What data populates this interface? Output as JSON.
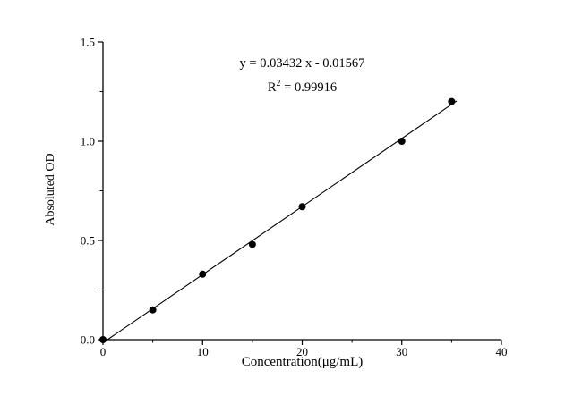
{
  "chart_data": {
    "type": "scatter",
    "title": "",
    "xlabel": "Concentration(μg/mL)",
    "ylabel": "Absoluted OD",
    "xlim": [
      0,
      40
    ],
    "ylim": [
      0,
      1.5
    ],
    "x_ticks": [
      0,
      10,
      20,
      30,
      40
    ],
    "x_tick_labels": [
      "0",
      "10",
      "20",
      "30",
      "40"
    ],
    "y_ticks": [
      0,
      0.5,
      1.0,
      1.5
    ],
    "y_tick_labels": [
      "0.0",
      "0.5",
      "1.0",
      "1.5"
    ],
    "x_minor_step": 5,
    "y_minor_step": 0.25,
    "grid": false,
    "legend": "none",
    "points": {
      "x": [
        0,
        5,
        10,
        15,
        20,
        30,
        35
      ],
      "y": [
        0.0,
        0.15,
        0.33,
        0.48,
        0.67,
        1.0,
        1.2
      ]
    },
    "fit": {
      "slope": 0.03432,
      "intercept": -0.01567,
      "x_start": 0,
      "x_end": 35.5
    },
    "annotation": {
      "equation": "y = 0.03432 x - 0.01567",
      "r2_prefix": "R",
      "r2_sup": "2",
      "r2_suffix": " = 0.99916"
    },
    "colors": {
      "line": "#000000",
      "marker": "#000000",
      "axis": "#000000",
      "background": "#ffffff"
    }
  }
}
